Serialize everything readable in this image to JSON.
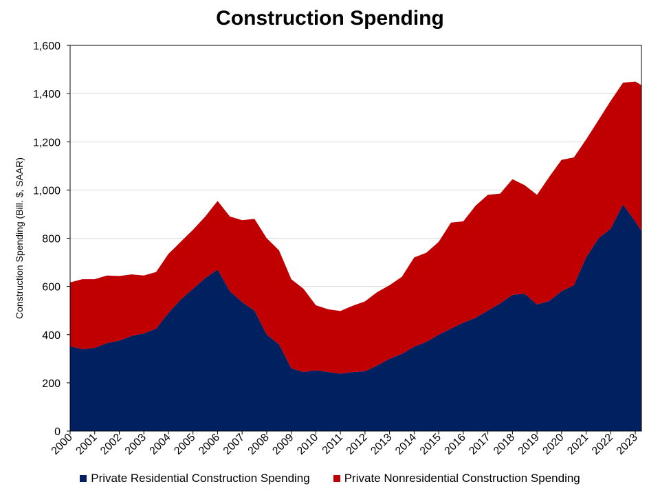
{
  "chart_data": {
    "type": "area",
    "stacked": true,
    "title": "Construction Spending",
    "ylabel": "Construction Spending (Bill. $, SAAR)",
    "xlabel": "",
    "ylim": [
      0,
      1600
    ],
    "xlim": [
      2000.0,
      2023.25
    ],
    "yticks": [
      0,
      200,
      400,
      600,
      800,
      1000,
      1200,
      1400,
      1600
    ],
    "ytick_labels": [
      "0",
      "200",
      "400",
      "600",
      "800",
      "1,000",
      "1,200",
      "1,400",
      "1,600"
    ],
    "xtick_labels": [
      "2000",
      "2001",
      "2002",
      "2003",
      "2004",
      "2005",
      "2006",
      "2007",
      "2008",
      "2009",
      "2010",
      "2011",
      "2012",
      "2013",
      "2014",
      "2015",
      "2016",
      "2017",
      "2018",
      "2019",
      "2020",
      "2021",
      "2022",
      "2023"
    ],
    "grid": "horizontal",
    "legend_position": "bottom",
    "x": [
      2000.0,
      2000.5,
      2001.0,
      2001.5,
      2002.0,
      2002.5,
      2003.0,
      2003.5,
      2004.0,
      2004.5,
      2005.0,
      2005.5,
      2006.0,
      2006.5,
      2007.0,
      2007.5,
      2008.0,
      2008.5,
      2009.0,
      2009.5,
      2010.0,
      2010.5,
      2011.0,
      2011.5,
      2012.0,
      2012.5,
      2013.0,
      2013.5,
      2014.0,
      2014.5,
      2015.0,
      2015.5,
      2016.0,
      2016.5,
      2017.0,
      2017.5,
      2018.0,
      2018.5,
      2019.0,
      2019.5,
      2020.0,
      2020.5,
      2021.0,
      2021.5,
      2022.0,
      2022.5,
      2023.0,
      2023.25
    ],
    "series": [
      {
        "name": "Private Residential Construction Spending",
        "color": "#002060",
        "values": [
          352,
          340,
          345,
          365,
          375,
          395,
          405,
          425,
          490,
          545,
          590,
          635,
          670,
          580,
          535,
          500,
          400,
          360,
          260,
          245,
          252,
          245,
          238,
          245,
          248,
          272,
          300,
          320,
          350,
          370,
          400,
          425,
          450,
          470,
          500,
          530,
          565,
          570,
          525,
          540,
          580,
          605,
          720,
          800,
          840,
          940,
          870,
          830
        ]
      },
      {
        "name": "Private Nonresidential Construction Spending",
        "color": "#C00000",
        "values": [
          265,
          290,
          285,
          280,
          268,
          255,
          240,
          235,
          245,
          240,
          245,
          255,
          285,
          310,
          340,
          380,
          400,
          390,
          370,
          345,
          270,
          260,
          260,
          275,
          290,
          305,
          305,
          320,
          370,
          370,
          385,
          440,
          420,
          465,
          480,
          455,
          480,
          450,
          455,
          515,
          545,
          530,
          490,
          490,
          530,
          505,
          580,
          605
        ]
      }
    ]
  }
}
